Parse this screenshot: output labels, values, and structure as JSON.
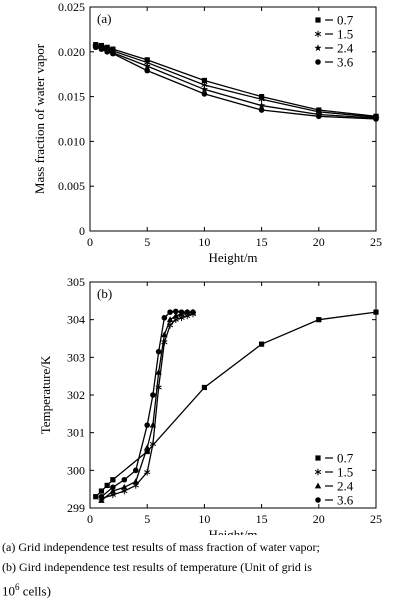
{
  "chart_data": [
    {
      "type": "line",
      "panel_label": "(a)",
      "xlabel": "Height/m",
      "ylabel": "Mass fraction of water vapor",
      "xlim": [
        0,
        25
      ],
      "ylim": [
        0,
        0.025
      ],
      "xticks": [
        "0",
        "5",
        "10",
        "15",
        "20",
        "25"
      ],
      "yticks": [
        "0",
        "0.005",
        "0.010",
        "0.015",
        "0.020",
        "0.025"
      ],
      "legend_position": "top-right",
      "series": [
        {
          "name": "0.7",
          "marker": "square",
          "x": [
            0.5,
            1,
            1.5,
            2,
            5,
            10,
            15,
            20,
            25
          ],
          "y": [
            0.0208,
            0.0207,
            0.0205,
            0.0203,
            0.0191,
            0.0168,
            0.015,
            0.0135,
            0.0128
          ]
        },
        {
          "name": "1.5",
          "marker": "asterisk",
          "x": [
            0.5,
            1,
            1.5,
            2,
            5,
            10,
            15,
            20,
            25
          ],
          "y": [
            0.0207,
            0.0205,
            0.0203,
            0.0201,
            0.0188,
            0.0163,
            0.0147,
            0.0133,
            0.0127
          ]
        },
        {
          "name": "2.4",
          "marker": "star",
          "x": [
            0.5,
            1,
            1.5,
            2,
            5,
            10,
            15,
            20,
            25
          ],
          "y": [
            0.0206,
            0.0204,
            0.0201,
            0.0199,
            0.0184,
            0.0158,
            0.014,
            0.013,
            0.0126
          ]
        },
        {
          "name": "3.6",
          "marker": "circle",
          "x": [
            0.5,
            1,
            1.5,
            2,
            5,
            10,
            15,
            20,
            25
          ],
          "y": [
            0.0205,
            0.0203,
            0.02,
            0.0198,
            0.0179,
            0.0153,
            0.0135,
            0.0128,
            0.0125
          ]
        }
      ]
    },
    {
      "type": "line",
      "panel_label": "(b)",
      "xlabel": "Height/m",
      "ylabel": "Temperature/K",
      "xlim": [
        0,
        25
      ],
      "ylim": [
        299,
        305
      ],
      "xticks": [
        "0",
        "5",
        "10",
        "15",
        "20",
        "25"
      ],
      "yticks": [
        "299",
        "300",
        "301",
        "302",
        "303",
        "304",
        "305"
      ],
      "legend_position": "bottom-right",
      "series": [
        {
          "name": "0.7",
          "marker": "square",
          "x": [
            0.5,
            1,
            1.5,
            2,
            5,
            10,
            15,
            20,
            25
          ],
          "y": [
            299.3,
            299.45,
            299.6,
            299.75,
            300.5,
            302.2,
            303.35,
            304.0,
            304.2
          ]
        },
        {
          "name": "1.5",
          "marker": "asterisk",
          "x": [
            1,
            2,
            3,
            4,
            5,
            5.5,
            6,
            6.5,
            7,
            7.5,
            8,
            8.5,
            9
          ],
          "y": [
            299.25,
            299.35,
            299.45,
            299.6,
            299.95,
            300.7,
            302.2,
            303.4,
            303.85,
            304.0,
            304.05,
            304.1,
            304.15
          ]
        },
        {
          "name": "2.4",
          "marker": "triangle",
          "x": [
            1,
            2,
            3,
            4,
            5,
            5.5,
            6,
            6.5,
            7,
            7.5,
            8,
            8.5,
            9
          ],
          "y": [
            299.2,
            299.45,
            299.55,
            299.7,
            300.6,
            301.2,
            302.6,
            303.6,
            304.0,
            304.1,
            304.15,
            304.2,
            304.2
          ]
        },
        {
          "name": "3.6",
          "marker": "circle",
          "x": [
            1,
            2,
            3,
            4,
            5,
            5.5,
            6,
            6.5,
            7,
            7.5,
            8,
            8.5,
            9
          ],
          "y": [
            299.3,
            299.55,
            299.75,
            300.0,
            301.2,
            302.0,
            303.15,
            304.05,
            304.2,
            304.22,
            304.2,
            304.2,
            304.2
          ]
        }
      ]
    }
  ],
  "caption": {
    "line1": "(a)  Grid independence test results of mass fraction of water vapor;",
    "line2": "(b) Gird independence test results of temperature (Unit of grid is",
    "line3_base": "10",
    "line3_sup": "6",
    "line3_rest": " cells)"
  }
}
